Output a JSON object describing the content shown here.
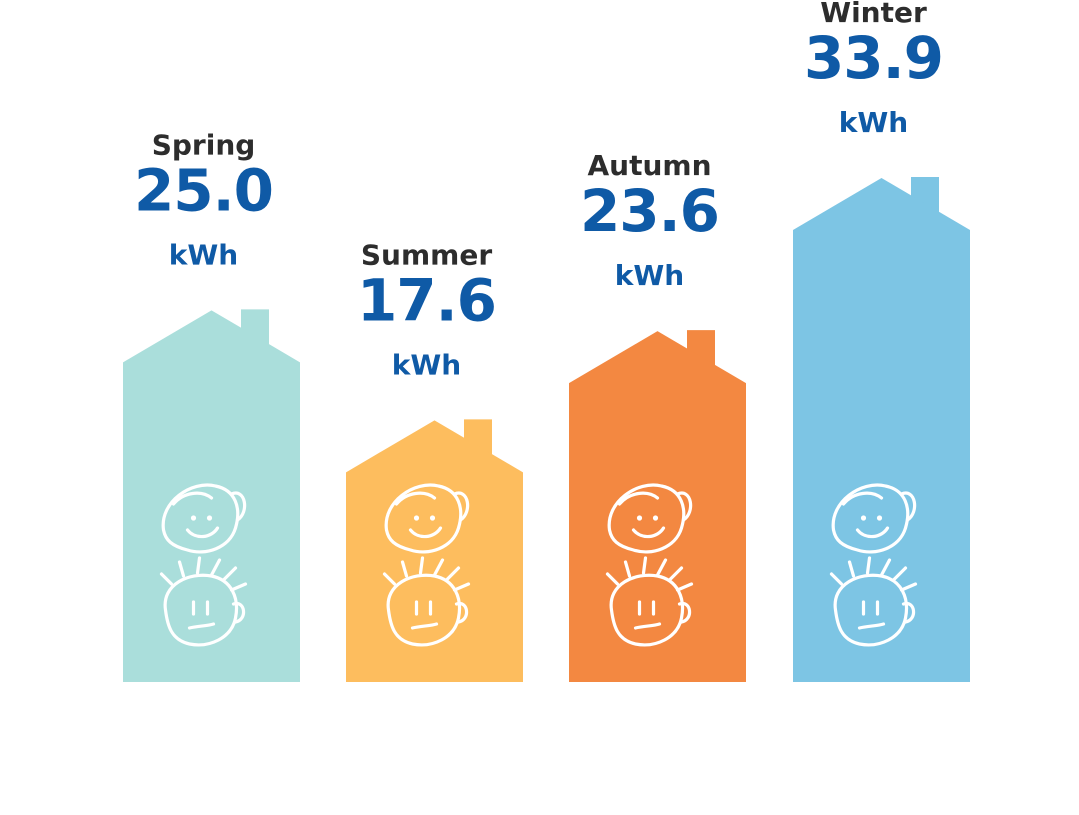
{
  "chart_data": {
    "type": "bar",
    "categories": [
      "Spring",
      "Summer",
      "Autumn",
      "Winter"
    ],
    "values": [
      25.0,
      17.6,
      23.6,
      33.9
    ],
    "value_labels": [
      "25.0",
      "17.6",
      "23.6",
      "33.9"
    ],
    "unit": "kWh",
    "colors": [
      "#aadedb",
      "#fdbd5e",
      "#f38841",
      "#7dc5e4"
    ],
    "value_color": "#0f5aa6",
    "label_color": "#2d2d2d",
    "bar_shape": "house",
    "icon": "family-faces-icon",
    "title": "",
    "xlabel": "",
    "ylabel": "",
    "ylim": [
      0,
      33.9
    ],
    "grid": false,
    "legend": "none"
  }
}
